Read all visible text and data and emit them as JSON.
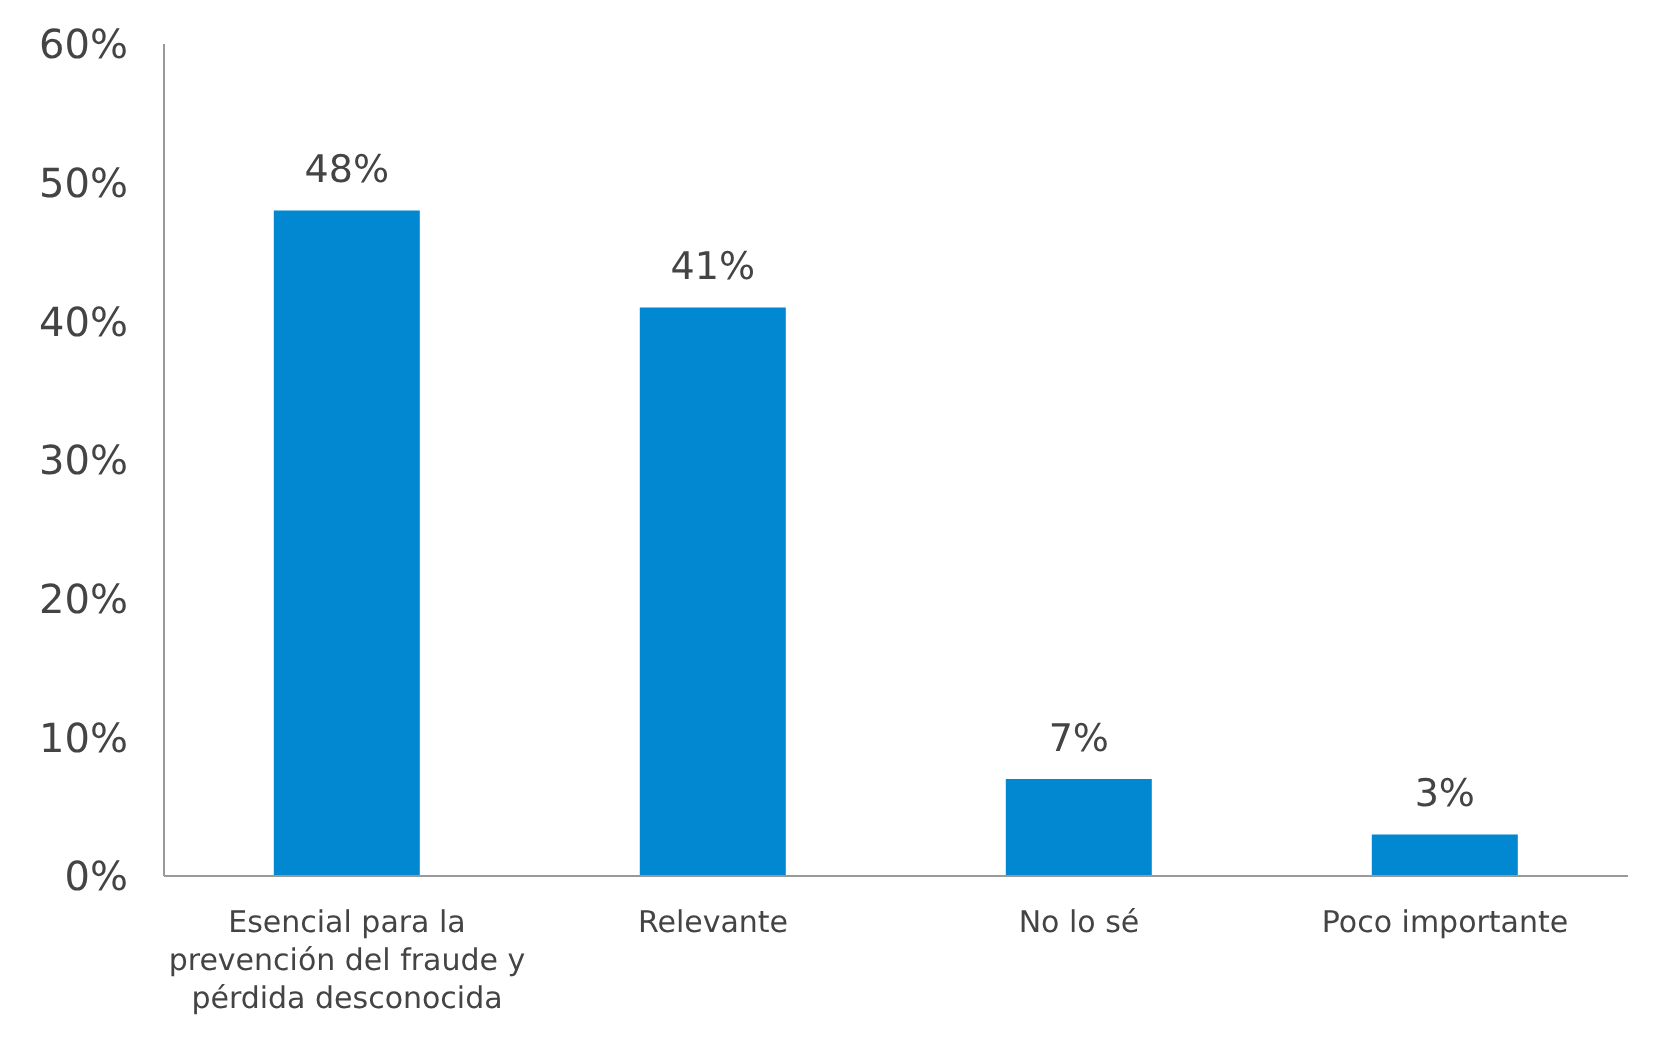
{
  "chart_data": {
    "type": "bar",
    "categories": [
      "Esencial para la prevención del fraude y pérdida desconocida",
      "Relevante",
      "No lo sé",
      "Poco importante"
    ],
    "values": [
      48,
      41,
      7,
      3
    ],
    "color": "#0288d1",
    "ylim": [
      0,
      60
    ],
    "yticks": [
      {
        "value": 0,
        "label": "0%"
      },
      {
        "value": 10,
        "label": "10%"
      },
      {
        "value": 20,
        "label": "20%"
      },
      {
        "value": 30,
        "label": "30%"
      },
      {
        "value": 40,
        "label": "40%"
      },
      {
        "value": 50,
        "label": "50%"
      },
      {
        "value": 60,
        "label": "60%"
      }
    ],
    "value_labels": [
      "48%",
      "41%",
      "7%",
      "3%"
    ],
    "grid": false
  }
}
